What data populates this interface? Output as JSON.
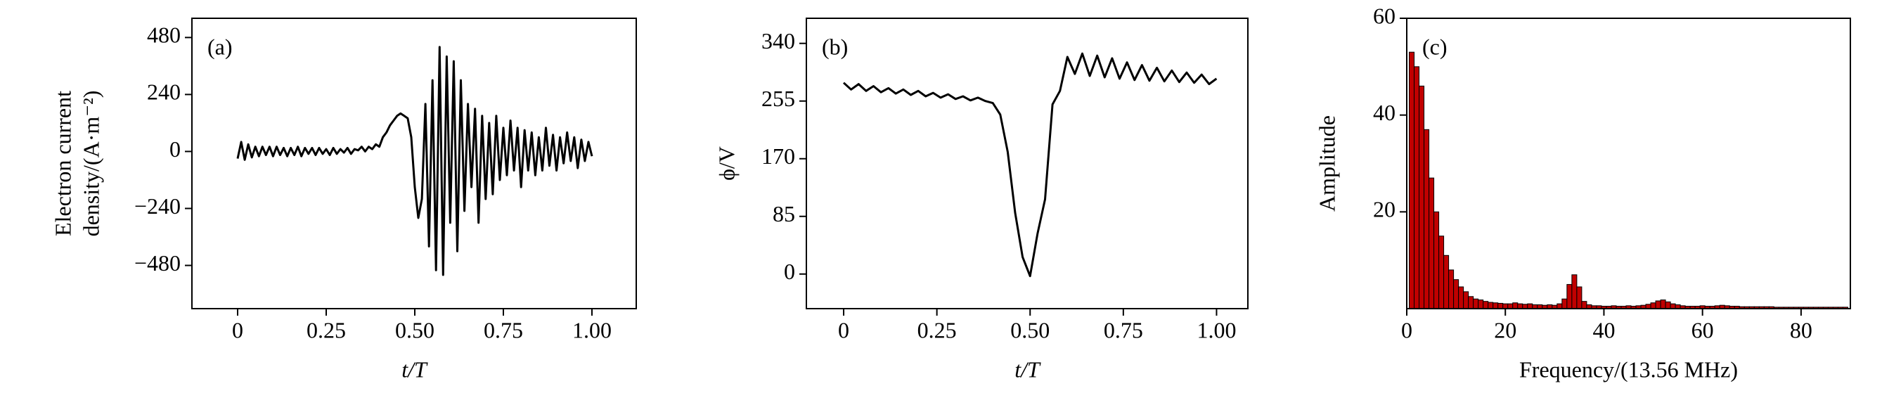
{
  "chart_data": [
    {
      "type": "line",
      "annotation": "(a)",
      "xlabel": "t/T",
      "ylabel": [
        "Electron current",
        "density/(A·m⁻²)"
      ],
      "color": "#000000",
      "xlim": [
        -0.129,
        1.125
      ],
      "ylim": [
        -662,
        561
      ],
      "xticks": [
        0,
        0.25,
        {
          "value": 0.5,
          "label": "0.50"
        },
        0.75,
        {
          "value": 1,
          "label": "1.00"
        }
      ],
      "yticks": [
        480,
        240,
        0,
        {
          "value": -240,
          "label": "−240"
        },
        {
          "value": -480,
          "label": "−480"
        }
      ],
      "x": [
        0,
        0.01,
        0.02,
        0.03,
        0.04,
        0.05,
        0.06,
        0.07,
        0.08,
        0.09,
        0.1,
        0.11,
        0.12,
        0.13,
        0.14,
        0.15,
        0.16,
        0.17,
        0.18,
        0.19,
        0.2,
        0.21,
        0.22,
        0.23,
        0.24,
        0.25,
        0.26,
        0.27,
        0.28,
        0.29,
        0.3,
        0.31,
        0.32,
        0.33,
        0.34,
        0.35,
        0.36,
        0.37,
        0.38,
        0.39,
        0.4,
        0.41,
        0.42,
        0.43,
        0.44,
        0.45,
        0.46,
        0.47,
        0.48,
        0.49,
        0.5,
        0.51,
        0.52,
        0.53,
        0.54,
        0.55,
        0.56,
        0.57,
        0.58,
        0.59,
        0.6,
        0.61,
        0.62,
        0.63,
        0.64,
        0.65,
        0.66,
        0.67,
        0.68,
        0.69,
        0.7,
        0.71,
        0.72,
        0.73,
        0.74,
        0.75,
        0.76,
        0.77,
        0.78,
        0.79,
        0.8,
        0.81,
        0.82,
        0.83,
        0.84,
        0.85,
        0.86,
        0.87,
        0.88,
        0.89,
        0.9,
        0.91,
        0.92,
        0.93,
        0.94,
        0.95,
        0.96,
        0.97,
        0.98,
        0.99,
        1
      ],
      "values": [
        -30,
        40,
        -35,
        30,
        -25,
        20,
        -20,
        20,
        -15,
        20,
        -20,
        20,
        -15,
        15,
        -20,
        15,
        -15,
        20,
        -20,
        15,
        -10,
        15,
        -15,
        15,
        -10,
        10,
        -15,
        15,
        -10,
        10,
        -5,
        15,
        -10,
        10,
        5,
        20,
        0,
        20,
        10,
        30,
        20,
        60,
        80,
        110,
        130,
        150,
        160,
        150,
        140,
        60,
        -150,
        -280,
        -200,
        200,
        -400,
        300,
        -500,
        440,
        -520,
        400,
        -300,
        380,
        -420,
        300,
        -250,
        200,
        -150,
        180,
        -300,
        150,
        -200,
        120,
        -180,
        150,
        -120,
        100,
        -100,
        130,
        -80,
        100,
        -150,
        90,
        -80,
        80,
        -100,
        60,
        -80,
        100,
        -60,
        70,
        -80,
        60,
        -50,
        80,
        -40,
        60,
        -70,
        50,
        -40,
        40,
        -20
      ]
    },
    {
      "type": "line",
      "annotation": "(b)",
      "xlabel": "t/T",
      "ylabel": "ϕ/V",
      "color": "#000000",
      "xlim": [
        -0.1,
        1.084
      ],
      "ylim": [
        -51,
        377
      ],
      "xticks": [
        0,
        0.25,
        {
          "value": 0.5,
          "label": "0.50"
        },
        0.75,
        {
          "value": 1,
          "label": "1.00"
        }
      ],
      "yticks": [
        0,
        85,
        170,
        255,
        340
      ],
      "x": [
        0,
        0.02,
        0.04,
        0.06,
        0.08,
        0.1,
        0.12,
        0.14,
        0.16,
        0.18,
        0.2,
        0.22,
        0.24,
        0.26,
        0.28,
        0.3,
        0.32,
        0.34,
        0.36,
        0.38,
        0.4,
        0.42,
        0.44,
        0.46,
        0.48,
        0.5,
        0.52,
        0.54,
        0.56,
        0.58,
        0.6,
        0.62,
        0.64,
        0.66,
        0.68,
        0.7,
        0.72,
        0.74,
        0.76,
        0.78,
        0.8,
        0.82,
        0.84,
        0.86,
        0.88,
        0.9,
        0.92,
        0.94,
        0.96,
        0.98,
        1
      ],
      "values": [
        282,
        272,
        280,
        270,
        277,
        268,
        274,
        266,
        272,
        264,
        270,
        262,
        267,
        260,
        265,
        258,
        262,
        256,
        260,
        255,
        252,
        235,
        180,
        90,
        25,
        -3,
        60,
        110,
        250,
        270,
        320,
        295,
        325,
        292,
        322,
        290,
        318,
        288,
        312,
        286,
        308,
        285,
        304,
        284,
        300,
        283,
        297,
        282,
        294,
        280,
        288
      ]
    },
    {
      "type": "bar",
      "annotation": "(c)",
      "xlabel": "Frequency/(13.56 MHz)",
      "ylabel": "Amplitude",
      "color": "#c00000",
      "xlim": [
        0,
        90
      ],
      "ylim": [
        0,
        60
      ],
      "xticks": [
        0,
        20,
        40,
        60,
        80
      ],
      "yticks": [
        20,
        40,
        60
      ],
      "x": [
        1,
        2,
        3,
        4,
        5,
        6,
        7,
        8,
        9,
        10,
        11,
        12,
        13,
        14,
        15,
        16,
        17,
        18,
        19,
        20,
        21,
        22,
        23,
        24,
        25,
        26,
        27,
        28,
        29,
        30,
        31,
        32,
        33,
        34,
        35,
        36,
        37,
        38,
        39,
        40,
        41,
        42,
        43,
        44,
        45,
        46,
        47,
        48,
        49,
        50,
        51,
        52,
        53,
        54,
        55,
        56,
        57,
        58,
        59,
        60,
        61,
        62,
        63,
        64,
        65,
        66,
        67,
        68,
        69,
        70,
        71,
        72,
        73,
        74,
        75,
        76,
        77,
        78,
        79,
        80,
        81,
        82,
        83,
        84,
        85,
        86,
        87,
        88,
        89
      ],
      "values": [
        53,
        50,
        46,
        37,
        27,
        20,
        15,
        11,
        8,
        6,
        4.5,
        3.5,
        2.5,
        2,
        1.8,
        1.5,
        1.3,
        1.2,
        1.1,
        1,
        1,
        1.2,
        1,
        0.9,
        1,
        0.8,
        0.8,
        0.7,
        0.8,
        0.7,
        1,
        2,
        5,
        7,
        4.5,
        1.5,
        0.8,
        0.6,
        0.6,
        0.5,
        0.5,
        0.6,
        0.5,
        0.5,
        0.6,
        0.5,
        0.6,
        0.7,
        0.9,
        1.2,
        1.6,
        1.8,
        1.4,
        1,
        0.8,
        0.6,
        0.5,
        0.5,
        0.5,
        0.6,
        0.5,
        0.5,
        0.6,
        0.7,
        0.6,
        0.5,
        0.5,
        0.4,
        0.4,
        0.4,
        0.4,
        0.4,
        0.4,
        0.4,
        0.3,
        0.3,
        0.3,
        0.3,
        0.3,
        0.3,
        0.3,
        0.3,
        0.3,
        0.3,
        0.3,
        0.3,
        0.3,
        0.3,
        0.3
      ]
    }
  ]
}
